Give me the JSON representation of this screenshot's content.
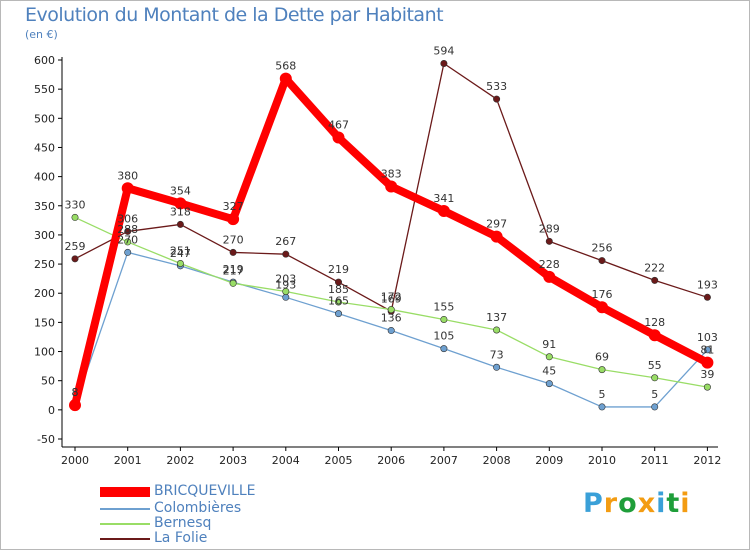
{
  "chart_data": {
    "type": "line",
    "title": "Evolution du Montant de la Dette par Habitant",
    "subtitle": "(en €)",
    "xlabel": "",
    "ylabel": "",
    "categories": [
      "2000",
      "2001",
      "2002",
      "2003",
      "2004",
      "2005",
      "2006",
      "2007",
      "2008",
      "2009",
      "2010",
      "2011",
      "2012"
    ],
    "ylim": [
      -50,
      600
    ],
    "yticks": [
      -50,
      0,
      50,
      100,
      150,
      200,
      250,
      300,
      350,
      400,
      450,
      500,
      550,
      600
    ],
    "grid": false,
    "legend_position": "bottom-left",
    "series": [
      {
        "name": "La Folie",
        "color": "#6b1a1a",
        "values": [
          259,
          306,
          318,
          270,
          267,
          219,
          169,
          594,
          533,
          289,
          256,
          222,
          193
        ]
      },
      {
        "name": "Colombières",
        "color": "#6ea0d0",
        "values": [
          8,
          270,
          247,
          219,
          193,
          165,
          136,
          105,
          73,
          45,
          5,
          5,
          103
        ]
      },
      {
        "name": "Bernesq",
        "color": "#99dd66",
        "values": [
          330,
          288,
          251,
          217,
          203,
          185,
          172,
          155,
          137,
          91,
          69,
          55,
          39
        ]
      },
      {
        "name": "BRICQUEVILLE",
        "color": "#ff0000",
        "values": [
          8,
          380,
          354,
          327,
          568,
          467,
          383,
          341,
          297,
          228,
          176,
          128,
          81
        ]
      }
    ]
  },
  "legend": {
    "items": [
      {
        "name": "BRICQUEVILLE",
        "color": "#ff0000"
      },
      {
        "name": "Colombières",
        "color": "#6ea0d0"
      },
      {
        "name": "Bernesq",
        "color": "#99dd66"
      },
      {
        "name": "La Folie",
        "color": "#6b1a1a"
      }
    ]
  },
  "logo": {
    "letters": [
      "P",
      "r",
      "o",
      "x",
      "i",
      "t",
      "i"
    ],
    "colors": [
      "#3aa0d8",
      "#f39c12",
      "#1f9e3a",
      "#f39c12",
      "#3aa0d8",
      "#1f9e3a",
      "#f39c12"
    ]
  }
}
